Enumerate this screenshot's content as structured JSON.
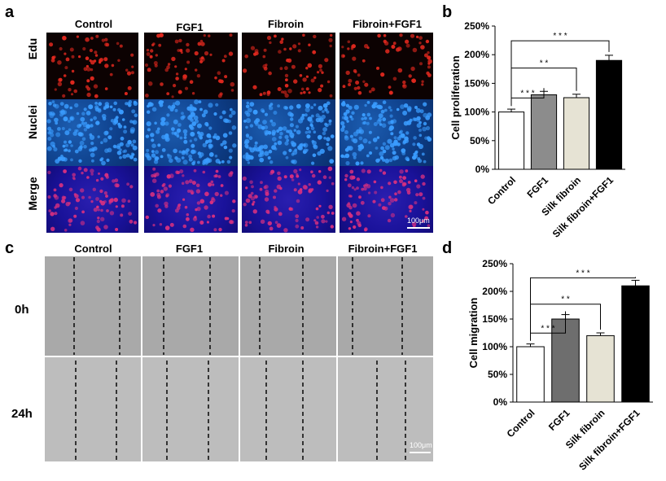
{
  "panels": {
    "a": {
      "label": "a",
      "columns": [
        "Control",
        "FGF1",
        "Fibroin",
        "Fibroin+FGF1"
      ],
      "rows": [
        "Edu",
        "Nuclei",
        "Merge"
      ],
      "scale": "100μm"
    },
    "b": {
      "label": "b"
    },
    "c": {
      "label": "c",
      "columns": [
        "Control",
        "FGF1",
        "Fibroin",
        "Fibroin+FGF1"
      ],
      "rows": [
        "0h",
        "24h"
      ],
      "scale": "100μm"
    },
    "d": {
      "label": "d"
    }
  },
  "chart_data": [
    {
      "type": "bar",
      "panel": "b",
      "categories": [
        "Control",
        "FGF1",
        "Silk fibroin",
        "Silk fibroin+FGF1"
      ],
      "values": [
        100,
        130,
        125,
        190
      ],
      "errors": [
        5,
        6,
        6,
        9
      ],
      "ylabel": "Cell proliferation",
      "ylim": [
        0,
        250
      ],
      "yticks": [
        "0%",
        "50%",
        "100%",
        "150%",
        "200%",
        "250%"
      ],
      "bar_colors": [
        "#ffffff",
        "#8c8c8c",
        "#e6e3d4",
        "#000000"
      ],
      "significance": [
        "* * *",
        "* *",
        "* * *"
      ]
    },
    {
      "type": "bar",
      "panel": "d",
      "categories": [
        "Control",
        "FGF1",
        "Silk fibroin",
        "Silk fibroin+FGF1"
      ],
      "values": [
        100,
        150,
        120,
        210
      ],
      "errors": [
        5,
        8,
        5,
        10
      ],
      "ylabel": "Cell migration",
      "ylim": [
        0,
        250
      ],
      "yticks": [
        "0%",
        "50%",
        "100%",
        "150%",
        "200%",
        "250%"
      ],
      "bar_colors": [
        "#ffffff",
        "#6e6e6e",
        "#e6e3d4",
        "#000000"
      ],
      "significance": [
        "* * *",
        "* *",
        "* * *"
      ]
    }
  ]
}
